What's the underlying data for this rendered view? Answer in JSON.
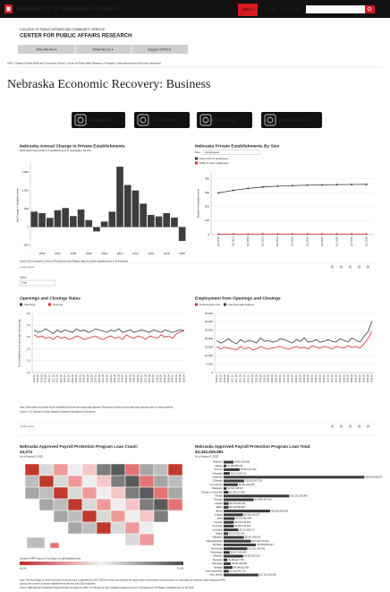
{
  "header": {
    "university": "UNIVERSITY OF NEBRASKA OMAHA",
    "apply": "APPLY",
    "my_uno": "MY UNO",
    "directory": "DIRECTORY"
  },
  "college": "COLLEGE OF PUBLIC AFFAIRS AND COMMUNITY SERVICE",
  "center": "CENTER FOR PUBLIC AFFAIRS RESEARCH",
  "nav": [
    "Who We Are ▾",
    "What We Do ▾",
    "Support CPACS"
  ],
  "breadcrumb": "UNO  >  College of Public Affairs and Community Service  >  Center for Public Affairs Research  >  Programs  >  Nebraska Economic Recovery Dashboard",
  "page_title": "Nebraska Economic Recovery: Business",
  "buttons": [
    "BUSINESS",
    "ECONOMY",
    "FINANCE",
    "WORKFORCE"
  ],
  "row1_source": "Source: BLS Quarterly Census of Employment and Wages data for private establishments in all industries.",
  "toolbar": "+ a b l e a u",
  "select": {
    "label": "Select",
    "value": "Total"
  },
  "row2_note": "Note: Data reflect all private sector establishments and are seasonally adjusted. Reporting of these closing rates lags opening rates by three quarters.",
  "row2_source": "Source: U.S. Bureau of Labor Statistics, Business Employment Dynamics.",
  "bottom_note": "Note: The percentage of small businesses receiving loans is calculated by UNO CPAR and may not represent the actual share of businesses receiving loans. It is calculated by dividing a state's approved PPP",
  "bottom_note2": "loans by the number of private establishments with less than 500 employees.",
  "bottom_source": "Source: SBA Payment Protection Program Report for August 8, 2020; U.S. Bureau of Labor Statistics Quarterly Census of Employment and Wages, establishments for Q3 2019.",
  "chart_data": [
    {
      "type": "bar",
      "title": "Nebraska Annual Change in Private Establishments",
      "subtitle": "2001-2020 total number of establishments in Nebraska = 61,373",
      "ylabel": "Net Change in Establishments",
      "x": [
        2001,
        2002,
        2003,
        2004,
        2005,
        2006,
        2007,
        2008,
        2009,
        2010,
        2011,
        2012,
        2013,
        2014,
        2015,
        2016,
        2017,
        2018,
        2019,
        2020
      ],
      "values": [
        420,
        380,
        250,
        460,
        520,
        300,
        480,
        190,
        -120,
        150,
        420,
        1650,
        1150,
        1000,
        640,
        330,
        290,
        380,
        260,
        -380
      ],
      "color": "#3d3d3d",
      "xlim": [
        2000.5,
        2020.5
      ],
      "xticks": [
        2002,
        2004,
        2006,
        2008,
        2010,
        2012,
        2014,
        2016,
        2018,
        2020
      ],
      "ylim": [
        -600,
        1800
      ],
      "yticks": [
        -500,
        0,
        500,
        {
          "value": 1000,
          "label": "1,000"
        },
        {
          "value": 1500,
          "label": "1,500"
        }
      ],
      "grid": false
    },
    {
      "type": "line",
      "title": "Nebraska Private Establishments By Size",
      "filter": {
        "label": "Size",
        "value": "Employees"
      },
      "ylabel": "Number of establishments",
      "categories": [
        "Q1 2010",
        "Q1 2011",
        "Q1 2012",
        "Q1 2013",
        "Q1 2014",
        "Q1 2015",
        "Q1 2016",
        "Q1 2017",
        "Q1 2018",
        "Q1 2019",
        "Q1 2020"
      ],
      "series": [
        {
          "name": "Fewer than 5 employees",
          "color": "#3a3a3a",
          "values": [
            300,
            318,
            332,
            342,
            348,
            352,
            355,
            357,
            359,
            360,
            361
          ]
        },
        {
          "name": "1000 or more employees",
          "color": "#d32f2f",
          "values": [
            4,
            4,
            4,
            5,
            5,
            5,
            5,
            5,
            5,
            5,
            5
          ]
        }
      ],
      "markers": true,
      "legend": "top-left",
      "ylim": [
        0,
        450
      ],
      "yticks": [
        0,
        100,
        200,
        300,
        400
      ],
      "grid": true
    },
    {
      "type": "line",
      "title": "Openings and Closings Rates",
      "ylabel": "% of establishments openings and closings",
      "categories": [
        "2010 Q1",
        "2010 Q2",
        "2010 Q3",
        "2010 Q4",
        "2011 Q1",
        "2011 Q2",
        "2011 Q3",
        "2011 Q4",
        "2012 Q1",
        "2012 Q2",
        "2012 Q3",
        "2012 Q4",
        "2013 Q1",
        "2013 Q2",
        "2013 Q3",
        "2013 Q4",
        "2014 Q1",
        "2014 Q2",
        "2014 Q3",
        "2014 Q4",
        "2015 Q1",
        "2015 Q2",
        "2015 Q3",
        "2015 Q4",
        "2016 Q1",
        "2016 Q2",
        "2016 Q3",
        "2016 Q4",
        "2017 Q1",
        "2017 Q2",
        "2017 Q3",
        "2017 Q4",
        "2018 Q1",
        "2018 Q2",
        "2018 Q3",
        "2018 Q4",
        "2019 Q1",
        "2019 Q2",
        "2019 Q3",
        "2019 Q4"
      ],
      "series": [
        {
          "name": "Openings",
          "color": "#3a3a3a",
          "values": [
            3.6,
            3.4,
            3.5,
            3.7,
            3.5,
            3.3,
            3.6,
            3.4,
            3.6,
            3.5,
            3.4,
            3.7,
            3.5,
            3.6,
            3.4,
            3.5,
            3.7,
            3.6,
            3.5,
            3.4,
            3.6,
            3.5,
            3.7,
            3.4,
            3.5,
            3.6,
            3.4,
            3.5,
            3.6,
            3.5,
            3.4,
            3.6,
            3.5,
            3.4,
            3.6,
            3.5,
            3.4,
            3.5,
            3.6,
            3.5
          ]
        },
        {
          "name": "Closings",
          "color": "#d32f2f",
          "values": [
            3.2,
            3.0,
            3.1,
            2.9,
            3.0,
            2.8,
            3.1,
            2.9,
            3.0,
            2.8,
            2.9,
            3.1,
            3.0,
            2.8,
            2.9,
            3.0,
            3.1,
            2.9,
            2.8,
            3.0,
            3.1,
            2.9,
            3.0,
            2.8,
            3.2,
            3.0,
            2.9,
            3.1,
            3.0,
            2.8,
            3.1,
            3.0,
            2.9,
            3.2,
            3.0,
            3.1,
            2.9,
            3.3,
            3.4,
            3.6
          ]
        }
      ],
      "markers": false,
      "legend": "top-left",
      "ylim": [
        0,
        5
      ],
      "yticks": [
        {
          "value": 0,
          "label": "0.0"
        },
        {
          "value": 1,
          "label": "1.0"
        },
        {
          "value": 2,
          "label": "2.0"
        },
        {
          "value": 3,
          "label": "3.0"
        },
        {
          "value": 4,
          "label": "4.0"
        },
        {
          "value": 5,
          "label": "5.0"
        }
      ],
      "grid": true
    },
    {
      "type": "line",
      "title": "Employment  from Openings and Closings",
      "categories": [
        "2010 Q1",
        "2010 Q2",
        "2010 Q3",
        "2010 Q4",
        "2011 Q1",
        "2011 Q2",
        "2011 Q3",
        "2011 Q4",
        "2012 Q1",
        "2012 Q2",
        "2012 Q3",
        "2012 Q4",
        "2013 Q1",
        "2013 Q2",
        "2013 Q3",
        "2013 Q4",
        "2014 Q1",
        "2014 Q2",
        "2014 Q3",
        "2014 Q4",
        "2015 Q1",
        "2015 Q2",
        "2015 Q3",
        "2015 Q4",
        "2016 Q1",
        "2016 Q2",
        "2016 Q3",
        "2016 Q4",
        "2017 Q1",
        "2017 Q2",
        "2017 Q3",
        "2017 Q4",
        "2018 Q1",
        "2018 Q2",
        "2018 Q3",
        "2018 Q4",
        "2019 Q1",
        "2019 Q2",
        "2019 Q3",
        "2019 Q4"
      ],
      "series": [
        {
          "name": "Closings jobs lost",
          "color": "#d32f2f",
          "values": [
            15500,
            14000,
            15000,
            14500,
            14000,
            13500,
            15500,
            14000,
            15000,
            13500,
            14000,
            15500,
            14500,
            14000,
            14500,
            15000,
            15500,
            14500,
            14000,
            14500,
            15500,
            14500,
            15000,
            14000,
            16000,
            15000,
            14500,
            15500,
            15000,
            14000,
            15500,
            15000,
            14500,
            16000,
            15000,
            15500,
            14500,
            17000,
            20000,
            24500
          ]
        },
        {
          "name": "Openings jobs gained",
          "color": "#3a3a3a",
          "values": [
            19000,
            17500,
            18500,
            20000,
            18000,
            17000,
            19500,
            18000,
            19000,
            18500,
            17500,
            20500,
            18500,
            19000,
            18000,
            18500,
            20000,
            19500,
            18500,
            17500,
            19500,
            18500,
            20500,
            18000,
            18500,
            19500,
            18000,
            18500,
            19500,
            18500,
            18000,
            20000,
            19000,
            18000,
            20500,
            19000,
            18000,
            21500,
            24000,
            30500
          ]
        }
      ],
      "markers": false,
      "legend": "top-left",
      "ylim": [
        0,
        35000
      ],
      "yticks": [
        0,
        {
          "value": 5000,
          "label": "5,000"
        },
        {
          "value": 10000,
          "label": "10,000"
        },
        {
          "value": 15000,
          "label": "15,000"
        },
        {
          "value": 20000,
          "label": "20,000"
        },
        {
          "value": 25000,
          "label": "25,000"
        },
        {
          "value": 30000,
          "label": "30,000"
        },
        {
          "value": 35000,
          "label": "35,000"
        }
      ],
      "grid": true
    },
    {
      "type": "map",
      "title": "Nebraska Approved Payroll Protection Program Loan Count:",
      "title_value": "44,074",
      "subtitle": "As of August 8, 2020",
      "legend_title": "Number of PPP loans as % of State's Small Establishments",
      "legend_labels": [
        "64.1%",
        "75.6%"
      ]
    },
    {
      "type": "hbar",
      "title": "Nebraska Approved Payroll Protection Program Loan Total:",
      "title_value": "$3,442,626,881",
      "subtitle": "As of August 8, 2020",
      "categories": [
        "Alabama",
        "Alaska",
        "Arizona",
        "Arkansas",
        "California",
        "Colorado",
        "Connecticut",
        "Delaware",
        "District of Columbia",
        "Florida",
        "Georgia",
        "Hawaii",
        "Idaho",
        "Illinois",
        "Indiana",
        "Iowa",
        "Kansas",
        "Kentucky",
        "Louisiana",
        "Maine",
        "Maryland",
        "Massachusetts",
        "Michigan",
        "Minnesota",
        "Mississippi",
        "Missouri",
        "Montana",
        "Nebraska",
        "Nevada",
        "New Hampshire",
        "New Jersey"
      ],
      "values": [
        4813245661,
        1285885661,
        7823417092,
        3012845110,
        68894826871,
        10023457718,
        6921340825,
        1502338417,
        2395117806,
        32151352399,
        14648147310,
        2476904192,
        2411580926,
        22803904866,
        9505180257,
        5391820448,
        5012336931,
        4983726105,
        7214908372,
        2207611843,
        9921450306,
        13400178215,
        15692833097,
        11601295442,
        3017485590,
        9583302164,
        1826117730,
        3442626881,
        4346612950,
        2518844716,
        17001393380
      ],
      "value_labels": [
        "$4,813,245,661",
        "$1,285,885,661",
        "$7,823,417,092",
        "$3,012,845,110",
        "$68,894,826,871",
        "$10,023,457,718",
        "$6,921,340,825",
        "$1,502,338,417",
        "$2,395,117,806",
        "$32,151,352,399",
        "$14,648,147,310",
        "$2,476,904,192",
        "$2,411,580,926",
        "$22,803,904,866",
        "$9,505,180,257",
        "$5,391,820,448",
        "$5,012,336,931",
        "$4,983,726,105",
        "$7,214,908,372",
        "$2,207,611,843",
        "$9,921,450,306",
        "$13,400,178,215",
        "$15,692,833,097",
        "$11,601,295,442",
        "$3,017,485,590",
        "$9,583,302,164",
        "$1,826,117,730",
        "$3,442,626,881",
        "$4,346,612,950",
        "$2,518,844,716",
        "$17,001,393,380"
      ],
      "color": "#3b3b3b",
      "xlim": [
        0,
        70000000000
      ]
    }
  ]
}
